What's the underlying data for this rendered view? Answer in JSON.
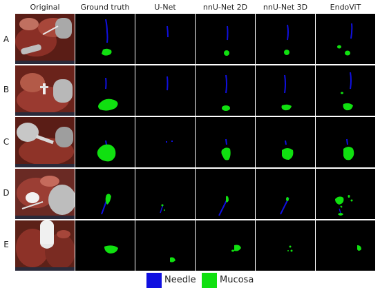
{
  "columns": [
    {
      "key": "original",
      "label": "Original"
    },
    {
      "key": "ground_truth",
      "label": "Ground truth"
    },
    {
      "key": "unet",
      "label": "U-Net"
    },
    {
      "key": "nnunet2d",
      "label": "nnU-Net 2D"
    },
    {
      "key": "nnunet3d",
      "label": "nnU-Net 3D"
    },
    {
      "key": "endovit",
      "label": "EndoViT"
    }
  ],
  "rows": [
    "A",
    "B",
    "C",
    "D",
    "E"
  ],
  "legend": [
    {
      "label": "Needle",
      "color": "#1010e0"
    },
    {
      "label": "Mucosa",
      "color": "#10e010"
    }
  ],
  "colors": {
    "needle": "#1010e0",
    "mucosa": "#10e010",
    "mask_background": "#000000",
    "tissue_dark": "#5a1d16",
    "tissue_red": "#9a3a30",
    "tool_gray": "#b8b8b8"
  }
}
